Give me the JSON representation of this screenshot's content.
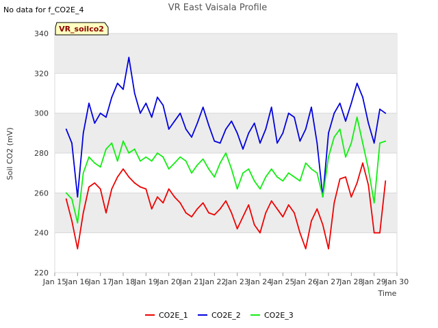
{
  "header": {
    "nodata_note": "No data for f_CO2E_4",
    "site_badge": "VR_soilco2"
  },
  "colors": {
    "CO2E_1": "#ee0000",
    "CO2E_2": "#0000dd",
    "CO2E_3": "#11ee11",
    "band": "#ececec",
    "badge_fill": "#ffffc0"
  },
  "chart_data": {
    "type": "line",
    "title": "VR East Vaisala Profile",
    "xlabel": "Time",
    "ylabel": "Soil CO2 (mV)",
    "xlim": [
      "2024-01-15",
      "2024-01-30"
    ],
    "ylim": [
      220,
      340
    ],
    "grid": true,
    "legend_position": "bottom",
    "x_ticks": [
      "Jan 15",
      "Jan 16",
      "Jan 17",
      "Jan 18",
      "Jan 19",
      "Jan 20",
      "Jan 21",
      "Jan 22",
      "Jan 23",
      "Jan 24",
      "Jan 25",
      "Jan 26",
      "Jan 27",
      "Jan 28",
      "Jan 29",
      "Jan 30"
    ],
    "y_ticks": [
      220,
      240,
      260,
      280,
      300,
      320,
      340
    ],
    "x": [
      "2024-01-15 12:00",
      "2024-01-15 18:00",
      "2024-01-16 00:00",
      "2024-01-16 06:00",
      "2024-01-16 12:00",
      "2024-01-16 18:00",
      "2024-01-17 00:00",
      "2024-01-17 06:00",
      "2024-01-17 12:00",
      "2024-01-17 18:00",
      "2024-01-18 00:00",
      "2024-01-18 06:00",
      "2024-01-18 12:00",
      "2024-01-18 18:00",
      "2024-01-19 00:00",
      "2024-01-19 06:00",
      "2024-01-19 12:00",
      "2024-01-19 18:00",
      "2024-01-20 00:00",
      "2024-01-20 06:00",
      "2024-01-20 12:00",
      "2024-01-20 18:00",
      "2024-01-21 00:00",
      "2024-01-21 06:00",
      "2024-01-21 12:00",
      "2024-01-21 18:00",
      "2024-01-22 00:00",
      "2024-01-22 06:00",
      "2024-01-22 12:00",
      "2024-01-22 18:00",
      "2024-01-23 00:00",
      "2024-01-23 06:00",
      "2024-01-23 12:00",
      "2024-01-23 18:00",
      "2024-01-24 00:00",
      "2024-01-24 06:00",
      "2024-01-24 12:00",
      "2024-01-24 18:00",
      "2024-01-25 00:00",
      "2024-01-25 06:00",
      "2024-01-25 12:00",
      "2024-01-25 18:00",
      "2024-01-26 00:00",
      "2024-01-26 06:00",
      "2024-01-26 12:00",
      "2024-01-26 18:00",
      "2024-01-27 00:00",
      "2024-01-27 06:00",
      "2024-01-27 12:00",
      "2024-01-27 18:00",
      "2024-01-28 00:00",
      "2024-01-28 06:00",
      "2024-01-28 12:00",
      "2024-01-28 18:00",
      "2024-01-29 00:00",
      "2024-01-29 06:00",
      "2024-01-29 12:00"
    ],
    "series": [
      {
        "name": "CO2E_1",
        "values": [
          257,
          246,
          232,
          250,
          263,
          265,
          262,
          250,
          262,
          268,
          272,
          268,
          265,
          263,
          262,
          252,
          258,
          255,
          262,
          258,
          255,
          250,
          248,
          252,
          255,
          250,
          249,
          252,
          256,
          250,
          242,
          248,
          254,
          244,
          240,
          250,
          256,
          252,
          248,
          254,
          250,
          240,
          232,
          246,
          252,
          244,
          232,
          255,
          267,
          268,
          258,
          265,
          275,
          264,
          240,
          240,
          266
        ]
      },
      {
        "name": "CO2E_2",
        "values": [
          292,
          285,
          258,
          290,
          305,
          295,
          300,
          298,
          308,
          315,
          312,
          328,
          310,
          300,
          305,
          298,
          308,
          304,
          292,
          296,
          300,
          292,
          288,
          295,
          303,
          294,
          286,
          285,
          292,
          296,
          290,
          282,
          290,
          295,
          285,
          292,
          303,
          285,
          290,
          300,
          298,
          286,
          292,
          303,
          285,
          258,
          290,
          300,
          305,
          296,
          305,
          315,
          308,
          295,
          285,
          302,
          300
        ]
      },
      {
        "name": "CO2E_3",
        "values": [
          260,
          257,
          245,
          270,
          278,
          275,
          273,
          282,
          285,
          276,
          286,
          280,
          282,
          276,
          278,
          276,
          280,
          278,
          272,
          275,
          278,
          276,
          270,
          274,
          277,
          272,
          268,
          275,
          280,
          272,
          262,
          270,
          272,
          266,
          262,
          268,
          272,
          268,
          266,
          270,
          268,
          266,
          275,
          272,
          270,
          258,
          278,
          288,
          292,
          278,
          285,
          298,
          285,
          272,
          255,
          285,
          286
        ]
      }
    ]
  }
}
